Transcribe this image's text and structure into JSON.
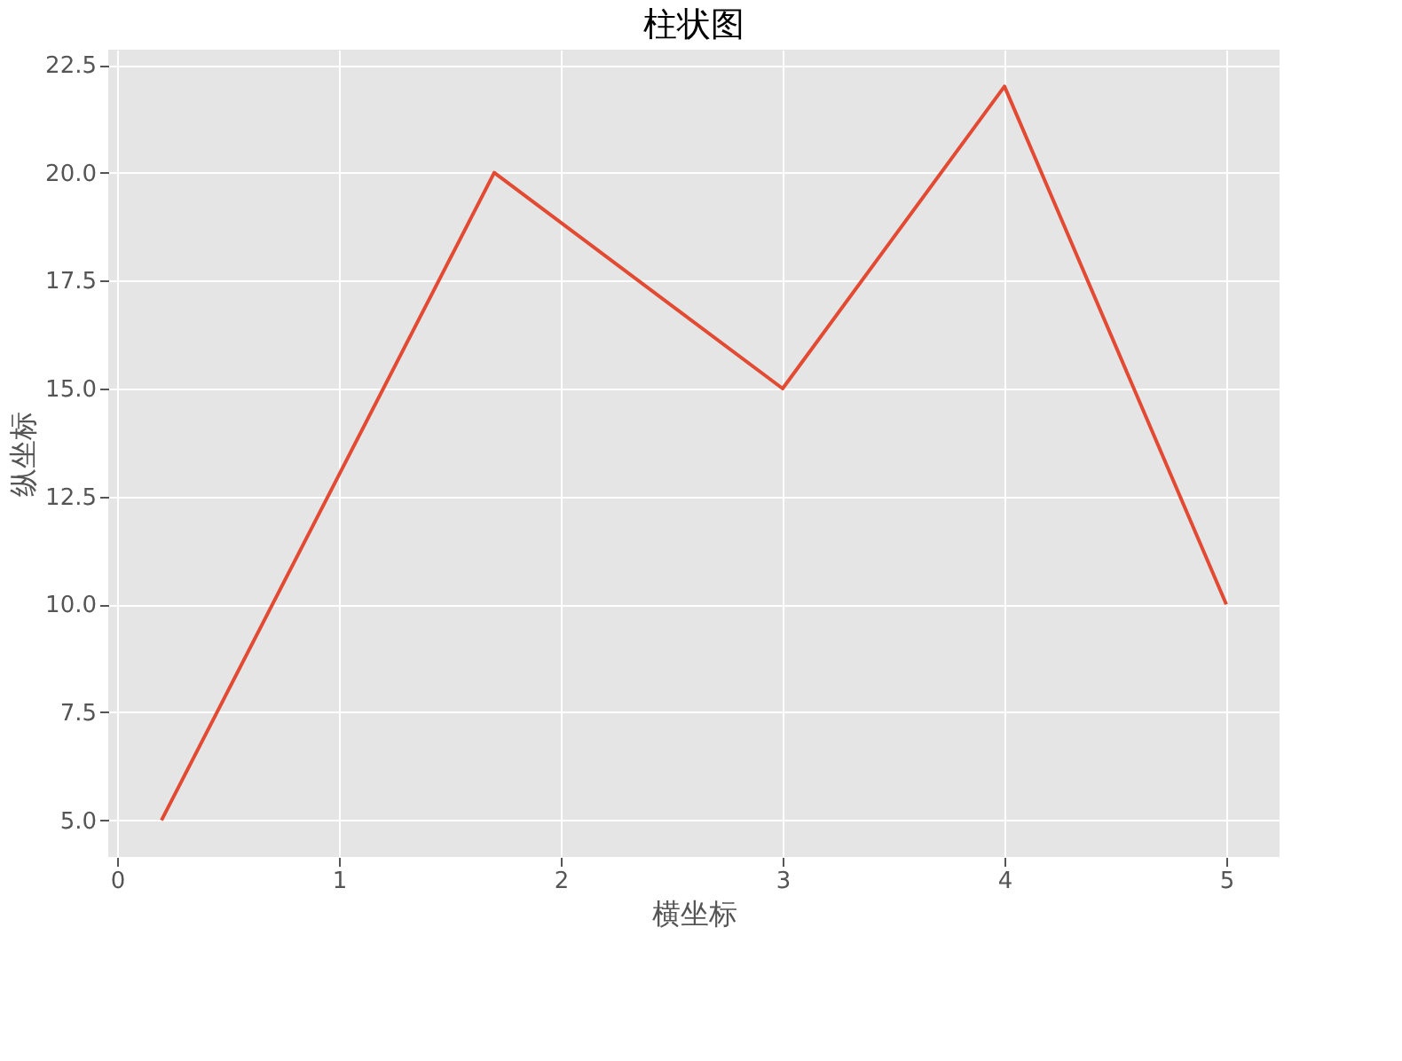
{
  "chart_data": {
    "type": "line",
    "title": "柱状图",
    "xlabel": "横坐标",
    "ylabel": "纵坐标",
    "x": [
      0.2,
      1,
      1.7,
      3,
      4,
      5
    ],
    "series": [
      {
        "color": "#e24a33",
        "values": [
          5,
          13,
          20,
          15,
          22,
          10
        ]
      }
    ],
    "xlim": [
      -0.04,
      5.24
    ],
    "ylim": [
      4.15,
      22.85
    ],
    "xticks": [
      0,
      1,
      2,
      3,
      4,
      5
    ],
    "yticks": [
      {
        "value": 5,
        "label": "5.0"
      },
      {
        "value": 7.5,
        "label": "7.5"
      },
      {
        "value": 10,
        "label": "10.0"
      },
      {
        "value": 12.5,
        "label": "12.5"
      },
      {
        "value": 15,
        "label": "15.0"
      },
      {
        "value": 17.5,
        "label": "17.5"
      },
      {
        "value": 20,
        "label": "20.0"
      },
      {
        "value": 22.5,
        "label": "22.5"
      }
    ],
    "grid": true,
    "marker": "none",
    "line_style": "solid"
  }
}
